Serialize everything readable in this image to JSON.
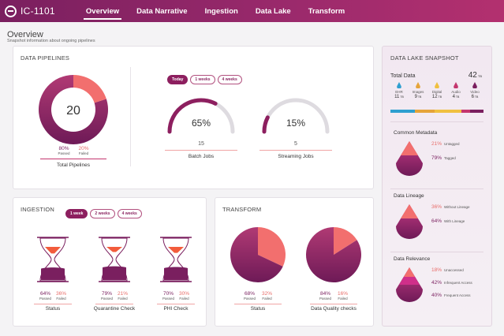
{
  "app": {
    "logo_text": "IC-1101"
  },
  "nav": {
    "tabs": [
      {
        "label": "Overview"
      },
      {
        "label": "Data Narrative"
      },
      {
        "label": "Ingestion"
      },
      {
        "label": "Data Lake"
      },
      {
        "label": "Transform"
      }
    ],
    "active": "Overview"
  },
  "header": {
    "title": "Overview",
    "subtitle": "Snapshot information about ongoing pipelines"
  },
  "pipelines": {
    "title": "DATA PIPELINES",
    "total": {
      "value": "20",
      "passed_pct": "80%",
      "failed_pct": "20%",
      "passed_frac": 0.8,
      "passed_label": "Passed",
      "failed_label": "Failed",
      "caption": "Total Pipelines"
    },
    "filters": [
      "Today",
      "1 weeks",
      "4 weeks"
    ],
    "active_filter": "Today",
    "batch": {
      "pct": "65%",
      "fraction": 0.65,
      "count": "15",
      "caption": "Batch Jobs"
    },
    "streaming": {
      "pct": "15%",
      "fraction": 0.15,
      "count": "5",
      "caption": "Streaming Jobs"
    }
  },
  "ingestion": {
    "title": "INGESTION",
    "filters": [
      "1 week",
      "2 weeks",
      "4 weeks"
    ],
    "active_filter": "1 week",
    "items": [
      {
        "passed": "64%",
        "failed": "36%",
        "passed_frac": 0.64,
        "caption": "Status"
      },
      {
        "passed": "79%",
        "failed": "21%",
        "passed_frac": 0.79,
        "caption": "Quarantine Check"
      },
      {
        "passed": "70%",
        "failed": "30%",
        "passed_frac": 0.7,
        "caption": "PHI Check"
      }
    ],
    "passed_label": "Passed",
    "failed_label": "Failed"
  },
  "transform": {
    "title": "TRANSFORM",
    "items": [
      {
        "passed": "68%",
        "failed": "32%",
        "passed_frac": 0.68,
        "caption": "Status"
      },
      {
        "passed": "84%",
        "failed": "16%",
        "passed_frac": 0.84,
        "caption": "Data Quality checks"
      }
    ],
    "passed_label": "Passed",
    "failed_label": "Failed"
  },
  "lake": {
    "title": "DATA LAKE SNAPSHOT",
    "total_label": "Total Data",
    "total_value": "42",
    "total_unit": "TB",
    "categories": [
      {
        "name": "EHR",
        "value": "11",
        "unit": "TB",
        "color": "#2e9fd0"
      },
      {
        "name": "Images",
        "value": "9",
        "unit": "TB",
        "color": "#e5a43a"
      },
      {
        "name": "Digital",
        "value": "12",
        "unit": "TB",
        "color": "#f0c040"
      },
      {
        "name": "Audio",
        "value": "4",
        "unit": "TB",
        "color": "#c4366e"
      },
      {
        "name": "Video",
        "value": "6",
        "unit": "TB",
        "color": "#7a1f5f"
      }
    ],
    "metadata": {
      "title": "Common Metadata",
      "rows": [
        {
          "pct": "21%",
          "label": "Untagged"
        },
        {
          "pct": "79%",
          "label": "Tagged"
        }
      ]
    },
    "lineage": {
      "title": "Data Lineage",
      "rows": [
        {
          "pct": "36%",
          "label": "Without Lineage"
        },
        {
          "pct": "64%",
          "label": "With Lineage"
        }
      ]
    },
    "relevance": {
      "title": "Data  Relevance",
      "rows": [
        {
          "pct": "18%",
          "label": "Unaccessed"
        },
        {
          "pct": "42%",
          "label": "Infrequent Access"
        },
        {
          "pct": "40%",
          "label": "Frequent Access"
        }
      ]
    }
  }
}
